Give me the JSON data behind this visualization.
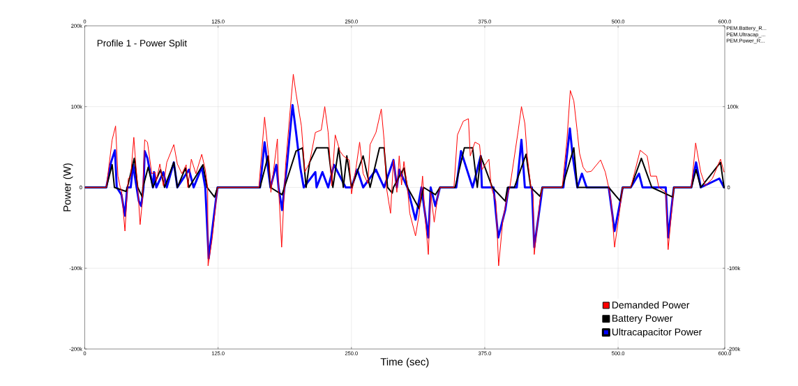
{
  "chart_data": {
    "type": "line",
    "title": "Profile 1 - Power  Split",
    "xlabel": "Time (sec)",
    "ylabel": "Power (W)",
    "annotations": [
      "PEM.Battery_R...",
      "PEM.Ultracap_...",
      "PEM.Power_R..."
    ],
    "xlim": [
      0,
      600
    ],
    "xticks": [
      0,
      {
        "value": 125,
        "label": "125.0"
      },
      {
        "value": 250,
        "label": "250.0"
      },
      {
        "value": 375,
        "label": "375.0"
      },
      {
        "value": 500,
        "label": "500.0"
      },
      {
        "value": 600,
        "label": "600.0"
      }
    ],
    "x2lim": [
      0,
      600
    ],
    "x2ticks": [
      0,
      {
        "value": 125,
        "label": "125.0"
      },
      {
        "value": 250,
        "label": "250.0"
      },
      {
        "value": 375,
        "label": "375.0"
      },
      {
        "value": 500,
        "label": "500.0"
      },
      {
        "value": 600,
        "label": "600.0"
      }
    ],
    "ylim": [
      -200000,
      200000
    ],
    "yticks": [
      {
        "value": -200000,
        "label": "-200k"
      },
      {
        "value": -100000,
        "label": "-100k"
      },
      0,
      {
        "value": 100000,
        "label": "100k"
      },
      {
        "value": 200000,
        "label": "200k"
      }
    ],
    "y2lim": [
      -200000,
      200000
    ],
    "y2ticks": [
      {
        "value": -200000,
        "label": "-200k"
      },
      {
        "value": -100000,
        "label": "-100k"
      },
      0,
      {
        "value": 100000,
        "label": "100k"
      },
      {
        "value": 200000,
        "label": null
      }
    ],
    "grid": true,
    "legend": "bottom right",
    "series": [
      {
        "name": "Demanded Power",
        "color": "#ff0000",
        "x": [
          0,
          20.2,
          25.7,
          28.9,
          31.1,
          33.3,
          34.4,
          37.7,
          39.8,
          40.9,
          43.1,
          46.0,
          47.9,
          49.7,
          51.9,
          54.0,
          56.2,
          58.8,
          62.8,
          66.0,
          67.1,
          70.4,
          73.7,
          76.9,
          83.5,
          86.8,
          91.1,
          95.1,
          96.6,
          99.9,
          104.2,
          109.7,
          113.0,
          115.2,
          115.6,
          119.5,
          124.5,
          163.2,
          168.6,
          173.0,
          174.5,
          180.6,
          181.7,
          184.6,
          187.2,
          188.3,
          192.6,
          195.5,
          198.1,
          203.1,
          206.4,
          210.8,
          216.2,
          221.7,
          225.0,
          228.2,
          231.5,
          234.8,
          239.2,
          242.4,
          247.9,
          250.1,
          254.4,
          257.7,
          261.0,
          265.4,
          267.5,
          273.0,
          278.0,
          280.6,
          282.8,
          286.7,
          289.4,
          292.6,
          294.8,
          297.0,
          299.2,
          302.5,
          304.7,
          310.1,
          313.4,
          316.7,
          318.8,
          322.1,
          324.3,
          327.6,
          330.8,
          333.0,
          346.1,
          349.4,
          354.9,
          359.7,
          361.4,
          365.8,
          370.1,
          372.3,
          378.9,
          381.1,
          385.4,
          388.0,
          392.0,
          396.3,
          398.5,
          406.1,
          409.4,
          412.6,
          414.8,
          418.1,
          420.3,
          421.4,
          426.8,
          429.0,
          447.6,
          451.9,
          455.2,
          458.5,
          461.8,
          463.9,
          467.2,
          470.5,
          474.9,
          483.6,
          488.0,
          491.2,
          493.4,
          496.7,
          501.1,
          504.3,
          511.9,
          515.2,
          520.7,
          527.2,
          530.5,
          536.0,
          538.2,
          544.7,
          546.9,
          552.3,
          568.7,
          572.7,
          577.5,
          581.8,
          588.4,
          596.0,
          599.3,
          600
        ],
        "values": [
          0,
          0,
          59000,
          76000,
          14000,
          0,
          -3000,
          -54000,
          -6000,
          11000,
          14000,
          62000,
          28000,
          0,
          -46000,
          -17000,
          59000,
          56000,
          17000,
          19000,
          8000,
          29000,
          2000,
          31000,
          53000,
          29000,
          17000,
          28000,
          0,
          35000,
          17000,
          41000,
          22000,
          0,
          -97000,
          -63000,
          0,
          0,
          87000,
          31000,
          -6000,
          60000,
          0,
          -74000,
          0,
          28000,
          96000,
          140000,
          116000,
          76000,
          19000,
          31000,
          68000,
          71000,
          100000,
          68000,
          2000,
          65000,
          45000,
          39000,
          34000,
          -8000,
          25000,
          56000,
          17000,
          5000,
          53000,
          68000,
          97000,
          59000,
          0,
          -32000,
          34000,
          -6000,
          39000,
          3000,
          32000,
          0,
          -32000,
          -60000,
          -34000,
          14000,
          -32000,
          -83000,
          -6000,
          -43000,
          -12000,
          0,
          0,
          65000,
          82000,
          85000,
          39000,
          56000,
          53000,
          22000,
          35000,
          0,
          -17000,
          -97000,
          -40000,
          -9000,
          0,
          68000,
          100000,
          79000,
          39000,
          2000,
          -9000,
          -83000,
          -15000,
          0,
          0,
          56000,
          120000,
          107000,
          68000,
          42000,
          25000,
          19000,
          20000,
          34000,
          19000,
          0,
          -17000,
          -74000,
          -32000,
          0,
          0,
          17000,
          46000,
          39000,
          14000,
          14000,
          0,
          -6000,
          -77000,
          0,
          0,
          55000,
          19000,
          2000,
          11000,
          35000,
          19000,
          20000
        ]
      },
      {
        "name": "Battery Power",
        "color": "#000000",
        "x": [
          0,
          20.2,
          25.7,
          27.8,
          38.7,
          40.0,
          46.4,
          49.7,
          54.0,
          54.5,
          59.5,
          63.9,
          71.1,
          74.8,
          83.5,
          86.8,
          94.4,
          97.7,
          110.8,
          114.7,
          121.7,
          124.5,
          164.3,
          171.9,
          174.1,
          185.0,
          187.2,
          198.1,
          204.2,
          207.5,
          210.8,
          217.3,
          228.2,
          232.6,
          238.1,
          242.4,
          245.7,
          250.1,
          261.0,
          267.5,
          276.3,
          280.6,
          283.9,
          288.3,
          289.4,
          299.2,
          302.5,
          313.4,
          317.7,
          328.7,
          333.0,
          347.2,
          355.9,
          363.6,
          368.0,
          371.2,
          382.1,
          394.2,
          396.3,
          402.8,
          413.7,
          418.1,
          426.8,
          429.0,
          447.6,
          458.5,
          461.8,
          491.2,
          502.1,
          504.3,
          511.9,
          521.8,
          531.6,
          551.3,
          552.3,
          568.7,
          573.1,
          577.5,
          596.0,
          599.3,
          600
        ],
        "values": [
          0,
          0,
          28000,
          0,
          -5000,
          0,
          36000,
          0,
          -12000,
          0,
          25000,
          0,
          22000,
          0,
          31000,
          0,
          24000,
          0,
          28000,
          0,
          -12000,
          0,
          0,
          39000,
          0,
          -9000,
          0,
          45000,
          49000,
          0,
          31000,
          49000,
          49000,
          0,
          49000,
          0,
          39000,
          0,
          39000,
          0,
          49000,
          49000,
          0,
          -7000,
          0,
          24000,
          0,
          -26000,
          0,
          -9000,
          0,
          0,
          49000,
          49000,
          0,
          39000,
          0,
          -17000,
          0,
          0,
          41000,
          0,
          -11000,
          0,
          0,
          49000,
          0,
          0,
          -17000,
          0,
          0,
          36000,
          0,
          -12000,
          0,
          0,
          22000,
          0,
          31000,
          0,
          0
        ]
      },
      {
        "name": "Ultracapacitor Power",
        "color": "#0000ff",
        "x": [
          0,
          20.2,
          24.6,
          28.3,
          30.0,
          34.4,
          37.7,
          39.8,
          43.1,
          45.3,
          48.6,
          50.7,
          52.9,
          55.1,
          56.2,
          58.8,
          63.9,
          64.9,
          67.1,
          73.7,
          76.9,
          83.5,
          86.8,
          97.7,
          102.1,
          109.7,
          113.0,
          116.2,
          122.8,
          124.5,
          164.3,
          168.6,
          174.1,
          179.6,
          181.7,
          185.0,
          187.2,
          189.4,
          194.8,
          198.1,
          202.0,
          205.3,
          216.2,
          217.3,
          222.8,
          228.2,
          233.7,
          244.6,
          250.1,
          255.5,
          261.0,
          273.0,
          280.6,
          289.4,
          292.6,
          294.8,
          302.5,
          310.1,
          315.6,
          322.1,
          324.3,
          328.7,
          333.0,
          348.3,
          352.7,
          363.6,
          365.8,
          371.2,
          372.3,
          383.2,
          387.6,
          394.2,
          397.4,
          405.0,
          409.4,
          412.6,
          419.2,
          421.4,
          428.0,
          429.0,
          448.7,
          454.8,
          457.4,
          461.8,
          466.1,
          470.5,
          491.2,
          496.7,
          502.1,
          504.3,
          511.9,
          519.6,
          522.9,
          544.7,
          546.9,
          551.3,
          552.3,
          568.7,
          573.1,
          577.5,
          594.9,
          599.3,
          600
        ],
        "values": [
          0,
          0,
          31000,
          46000,
          0,
          -9000,
          -35000,
          0,
          0,
          28000,
          0,
          -17000,
          -23000,
          0,
          45000,
          36000,
          0,
          19000,
          0,
          19000,
          0,
          31000,
          0,
          22000,
          0,
          25000,
          0,
          -88000,
          -17000,
          0,
          0,
          56000,
          0,
          28000,
          0,
          -28000,
          0,
          25000,
          102000,
          68000,
          25000,
          0,
          19000,
          0,
          19000,
          0,
          28000,
          0,
          0,
          22000,
          0,
          22000,
          0,
          34000,
          0,
          22000,
          0,
          -40000,
          0,
          -62000,
          0,
          -23000,
          0,
          0,
          45000,
          0,
          11000,
          39000,
          0,
          0,
          -62000,
          -28000,
          0,
          0,
          59000,
          0,
          0,
          -74000,
          -11000,
          0,
          0,
          73000,
          39000,
          0,
          17000,
          0,
          0,
          -54000,
          -17000,
          0,
          0,
          17000,
          0,
          0,
          -62000,
          -11000,
          0,
          0,
          31000,
          0,
          11000,
          0,
          0
        ]
      }
    ]
  }
}
